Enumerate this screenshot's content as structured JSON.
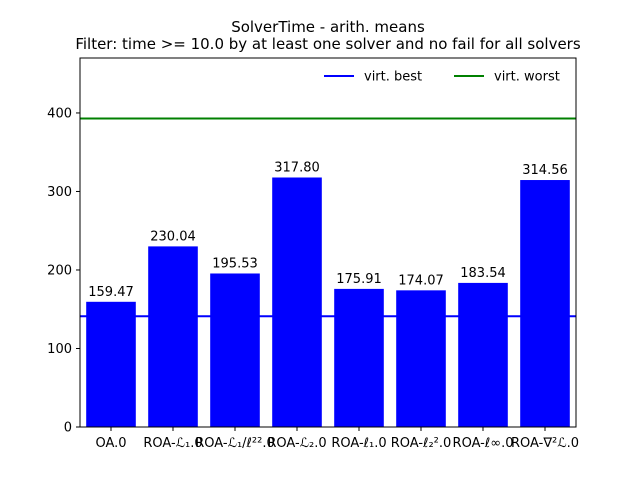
{
  "chart_data": {
    "type": "bar",
    "title": "SolverTime - arith. means",
    "subtitle": "Filter: time >= 10.0 by at least one solver and no fail for all solvers",
    "categories": [
      "OA.0",
      "ROA-ℒ₁.0",
      "ROA-ℒ₁/ℓ²².0",
      "ROA-ℒ₂.0",
      "ROA-ℓ₁.0",
      "ROA-ℓ₂².0",
      "ROA-ℓ∞.0",
      "ROA-∇²ℒ.0"
    ],
    "values": [
      159.47,
      230.04,
      195.53,
      317.8,
      175.91,
      174.07,
      183.54,
      314.56
    ],
    "value_labels": [
      "159.47",
      "230.04",
      "195.53",
      "317.80",
      "175.91",
      "174.07",
      "183.54",
      "314.56"
    ],
    "bar_color": "#0000ff",
    "ylim": [
      0,
      470
    ],
    "yticks": [
      0,
      100,
      200,
      300,
      400
    ],
    "ytick_labels": [
      "0",
      "100",
      "200",
      "300",
      "400"
    ],
    "reference_lines": [
      {
        "name": "virt. best",
        "value": 141,
        "color": "#0000ff"
      },
      {
        "name": "virt. worst",
        "value": 393,
        "color": "#008000"
      }
    ],
    "legend_position": "top-right",
    "grid": false,
    "xlabel": "",
    "ylabel": ""
  }
}
